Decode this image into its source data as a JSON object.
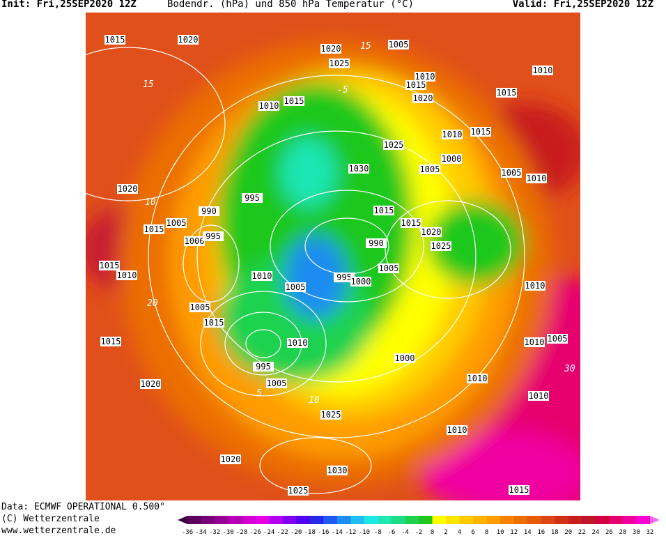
{
  "header": {
    "init": "Init: Fri,25SEP2020 12Z",
    "title": "Bodendr. (hPa) und 850 hPa Temperatur (°C)",
    "valid": "Valid: Fri,25SEP2020 12Z"
  },
  "footer": {
    "data": "Data: ECMWF OPERATIONAL 0.500°",
    "copyright": "(C) Wetterzentrale",
    "url": "www.wetterzentrale.de"
  },
  "map": {
    "isobar_labels": [
      "1015",
      "1020",
      "1020",
      "1005",
      "1025",
      "1010",
      "1015",
      "1020",
      "1010",
      "1015",
      "1010",
      "1015",
      "1010",
      "1015",
      "1025",
      "1000",
      "1005",
      "1030",
      "1020",
      "995",
      "990",
      "1015",
      "1005",
      "1015",
      "1015",
      "1020",
      "1000",
      "995",
      "990",
      "1025",
      "1015",
      "1010",
      "1005",
      "1010",
      "1005",
      "995",
      "1000",
      "1005",
      "1015",
      "1015",
      "1010",
      "995",
      "1005",
      "1020",
      "1025",
      "1010",
      "1010",
      "1010",
      "1020",
      "1030",
      "1025",
      "1015",
      "1010",
      "1010",
      "1005",
      "1000",
      "1005",
      "1010"
    ],
    "temperature_labels": [
      "15",
      "15",
      "10",
      "5",
      "10",
      "30",
      "20",
      "-5"
    ]
  },
  "colorbar": {
    "ticks": [
      -36,
      -34,
      -32,
      -30,
      -28,
      -26,
      -24,
      -22,
      -20,
      -18,
      -16,
      -14,
      -12,
      -10,
      -8,
      -6,
      -4,
      -2,
      0,
      2,
      4,
      6,
      8,
      10,
      12,
      14,
      16,
      18,
      20,
      22,
      24,
      26,
      28,
      30,
      32
    ],
    "colors": [
      "#3c003c",
      "#5a005a",
      "#780078",
      "#960096",
      "#b400b4",
      "#d200d2",
      "#e600e6",
      "#b400f0",
      "#8200f0",
      "#5000f0",
      "#2828e6",
      "#1e5af0",
      "#1e8cf0",
      "#1ebef0",
      "#1ee6e6",
      "#1ee6b4",
      "#1edc82",
      "#1ed250",
      "#1ec81e",
      "#ffff00",
      "#ffe600",
      "#ffcc00",
      "#ffb400",
      "#ff9c00",
      "#f58200",
      "#eb6e00",
      "#e65a0a",
      "#dc4614",
      "#d23214",
      "#c81e1e",
      "#c0142d",
      "#d2003c",
      "#e6006e",
      "#f000a0",
      "#ff00d2",
      "#ff64ff"
    ]
  }
}
